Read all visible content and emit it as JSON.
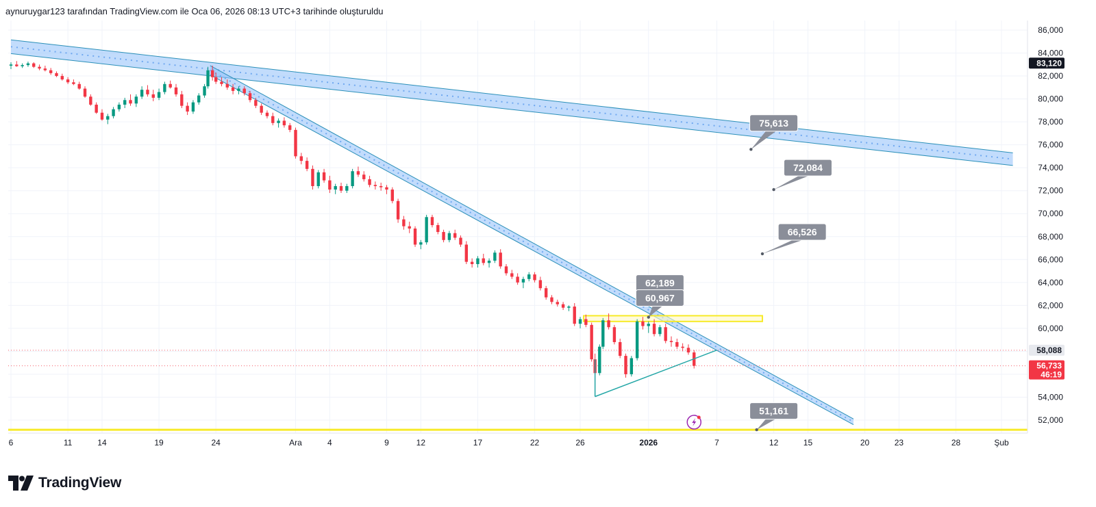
{
  "header": {
    "attribution": "aynuruygar123 tarafından TradingView.com ile Oca 06, 2026 08:13 UTC+3 tarihinde oluşturuldu"
  },
  "brand": {
    "name": "TradingView"
  },
  "colors": {
    "up": "#089981",
    "down": "#f23645",
    "trend_band": "#90bff9",
    "trend_edge": "#2a8fb8",
    "zone_yellow": "#f7ea28",
    "callout": "#8a8e99",
    "triangle": "#22a6a6"
  },
  "chart_data": {
    "type": "candlestick",
    "y_axis": {
      "min": 50600,
      "max": 87000,
      "position": "right",
      "ticks": [
        "86,000",
        "84,000",
        "82,000",
        "80,000",
        "78,000",
        "76,000",
        "74,000",
        "72,000",
        "70,000",
        "68,000",
        "66,000",
        "64,000",
        "62,000",
        "60,000",
        "58,000",
        "56,000",
        "54,000",
        "52,000"
      ],
      "tick_values": [
        86000,
        84000,
        82000,
        80000,
        78000,
        76000,
        74000,
        72000,
        70000,
        68000,
        66000,
        64000,
        62000,
        60000,
        58000,
        56000,
        54000,
        52000
      ]
    },
    "x_axis": {
      "date_start": "2025-11-06",
      "date_end": "2026-02-02",
      "ticks": [
        {
          "label": "6",
          "date": "2025-11-06"
        },
        {
          "label": "11",
          "date": "2025-11-11"
        },
        {
          "label": "14",
          "date": "2025-11-14"
        },
        {
          "label": "19",
          "date": "2025-11-19"
        },
        {
          "label": "24",
          "date": "2025-11-24"
        },
        {
          "label": "Ara",
          "date": "2025-12-01",
          "bold": false
        },
        {
          "label": "4",
          "date": "2025-12-04"
        },
        {
          "label": "9",
          "date": "2025-12-09"
        },
        {
          "label": "12",
          "date": "2025-12-12"
        },
        {
          "label": "17",
          "date": "2025-12-17"
        },
        {
          "label": "22",
          "date": "2025-12-22"
        },
        {
          "label": "26",
          "date": "2025-12-26"
        },
        {
          "label": "2026",
          "date": "2026-01-01",
          "bold": true
        },
        {
          "label": "7",
          "date": "2026-01-07"
        },
        {
          "label": "12",
          "date": "2026-01-12"
        },
        {
          "label": "15",
          "date": "2026-01-15"
        },
        {
          "label": "20",
          "date": "2026-01-20"
        },
        {
          "label": "23",
          "date": "2026-01-23"
        },
        {
          "label": "28",
          "date": "2026-01-28"
        },
        {
          "label": "Şub",
          "date": "2026-02-01"
        }
      ]
    },
    "price_tags": [
      {
        "label": "83,120",
        "value": 83120,
        "bg": "#131722"
      },
      {
        "label": "58,088",
        "value": 58088,
        "bg": "#e7e9ee",
        "fg": "#131722"
      },
      {
        "label": "56,733",
        "value": 56733,
        "bg": "#f23645",
        "sub": "46:19"
      }
    ],
    "ref_lines": [
      {
        "value": 58088,
        "color": "#f23645"
      },
      {
        "value": 56733,
        "color": "#f23645"
      }
    ],
    "callouts": [
      {
        "label": "75,613",
        "date": "2026-01-12",
        "value": 77900,
        "anchor_date": "2026-01-10",
        "anchor_value": 75600
      },
      {
        "label": "72,084",
        "date": "2026-01-15",
        "value": 74000,
        "anchor_date": "2026-01-12",
        "anchor_value": 72100
      },
      {
        "label": "66,526",
        "date": "2026-01-14.5",
        "value": 68400,
        "anchor_date": "2026-01-11",
        "anchor_value": 66500
      },
      {
        "label": "62,189",
        "date": "2026-01-02",
        "value": 63950,
        "anchor_date": "2025-12-31",
        "anchor_value": 62200
      },
      {
        "label": "60,967",
        "date": "2026-01-02",
        "value": 62650,
        "anchor_date": "2026-01-01",
        "anchor_value": 60970
      },
      {
        "label": "51,161",
        "date": "2026-01-12",
        "value": 52800,
        "anchor_date": "2026-01-10.5",
        "anchor_value": 51161
      }
    ],
    "trend_bands": [
      {
        "name": "long-band",
        "from_date": "2025-11-06",
        "from_top": 85150,
        "from_bot": 83950,
        "to_date": "2026-02-02",
        "to_top": 75300,
        "to_bot": 74200
      },
      {
        "name": "steep-band",
        "from_date": "2025-11-23.5",
        "from_top": 82900,
        "from_bot": 82100,
        "to_date": "2026-01-19",
        "to_top": 52100,
        "to_bot": 51600
      }
    ],
    "yellow_zone": {
      "from_date": "2025-12-26.3",
      "to_date": "2026-01-11",
      "top": 61100,
      "bot": 60600
    },
    "yellow_line": {
      "value": 51161
    },
    "triangle": {
      "points": [
        [
          "2025-12-27.3",
          54050
        ],
        [
          "2026-01-07",
          58100
        ]
      ]
    },
    "candles": [
      [
        "2025-11-06",
        82900,
        83200,
        82600,
        83000
      ],
      [
        "2025-11-06.5",
        83000,
        83300,
        82800,
        82850
      ],
      [
        "2025-11-07",
        82850,
        83100,
        82700,
        82950
      ],
      [
        "2025-11-07.5",
        82950,
        83250,
        82800,
        83100
      ],
      [
        "2025-11-08",
        83100,
        83200,
        82700,
        82800
      ],
      [
        "2025-11-08.5",
        82800,
        83000,
        82500,
        82650
      ],
      [
        "2025-11-09",
        82650,
        82900,
        82400,
        82500
      ],
      [
        "2025-11-09.5",
        82500,
        82700,
        82100,
        82250
      ],
      [
        "2025-11-10",
        82250,
        82400,
        81900,
        82000
      ],
      [
        "2025-11-10.5",
        82000,
        82200,
        81600,
        81700
      ],
      [
        "2025-11-11",
        81700,
        81900,
        81300,
        81450
      ],
      [
        "2025-11-11.5",
        81450,
        81700,
        81200,
        81300
      ],
      [
        "2025-11-12",
        81300,
        81500,
        80800,
        80900
      ],
      [
        "2025-11-12.5",
        80900,
        81100,
        80100,
        80200
      ],
      [
        "2025-11-13",
        80200,
        80400,
        79400,
        79500
      ],
      [
        "2025-11-13.5",
        79500,
        79700,
        78700,
        78800
      ],
      [
        "2025-11-14",
        78800,
        79100,
        78100,
        78200
      ],
      [
        "2025-11-14.5",
        78200,
        78700,
        77800,
        78500
      ],
      [
        "2025-11-15",
        78500,
        79300,
        78300,
        79100
      ],
      [
        "2025-11-15.5",
        79100,
        79700,
        78900,
        79500
      ],
      [
        "2025-11-16",
        79500,
        80100,
        79200,
        79900
      ],
      [
        "2025-11-16.5",
        79900,
        80400,
        79400,
        79600
      ],
      [
        "2025-11-17",
        79600,
        80400,
        79300,
        80200
      ],
      [
        "2025-11-17.5",
        80200,
        81100,
        80000,
        80800
      ],
      [
        "2025-11-18",
        80800,
        81200,
        80200,
        80400
      ],
      [
        "2025-11-18.5",
        80400,
        80800,
        79800,
        80100
      ],
      [
        "2025-11-19",
        80100,
        80900,
        79900,
        80600
      ],
      [
        "2025-11-19.5",
        80600,
        81500,
        80400,
        81300
      ],
      [
        "2025-11-20",
        81300,
        81600,
        80900,
        81000
      ],
      [
        "2025-11-20.5",
        81000,
        81300,
        80200,
        80400
      ],
      [
        "2025-11-21",
        80400,
        80700,
        79200,
        79400
      ],
      [
        "2025-11-21.5",
        79400,
        79700,
        78600,
        78900
      ],
      [
        "2025-11-22",
        78900,
        79900,
        78700,
        79700
      ],
      [
        "2025-11-22.5",
        79700,
        80500,
        79500,
        80300
      ],
      [
        "2025-11-23",
        80300,
        81300,
        80100,
        81100
      ],
      [
        "2025-11-23.3",
        81100,
        82800,
        80900,
        82500
      ],
      [
        "2025-11-23.7",
        82500,
        82900,
        81600,
        81900
      ],
      [
        "2025-11-24",
        81900,
        82300,
        81300,
        81500
      ],
      [
        "2025-11-24.5",
        81500,
        81900,
        81100,
        81300
      ],
      [
        "2025-11-25",
        81300,
        81700,
        80800,
        81000
      ],
      [
        "2025-11-25.5",
        81000,
        81300,
        80400,
        80700
      ],
      [
        "2025-11-26",
        80700,
        81100,
        80400,
        80900
      ],
      [
        "2025-11-26.5",
        80900,
        81100,
        80300,
        80500
      ],
      [
        "2025-11-27",
        80500,
        80700,
        79700,
        79900
      ],
      [
        "2025-11-27.5",
        79900,
        80100,
        79200,
        79400
      ],
      [
        "2025-11-28",
        79400,
        79600,
        78600,
        78800
      ],
      [
        "2025-11-28.5",
        78800,
        79000,
        78300,
        78500
      ],
      [
        "2025-11-29",
        78500,
        78800,
        77700,
        77900
      ],
      [
        "2025-11-29.5",
        77900,
        78300,
        77500,
        78100
      ],
      [
        "2025-11-30",
        78100,
        78400,
        77500,
        77700
      ],
      [
        "2025-11-30.5",
        77700,
        77900,
        77100,
        77300
      ],
      [
        "2025-12-01",
        77300,
        77500,
        74800,
        75000
      ],
      [
        "2025-12-01.5",
        75000,
        75300,
        74300,
        74600
      ],
      [
        "2025-12-02",
        74600,
        74900,
        73700,
        73900
      ],
      [
        "2025-12-02.5",
        73900,
        74200,
        72100,
        72400
      ],
      [
        "2025-12-03",
        72400,
        73800,
        72200,
        73600
      ],
      [
        "2025-12-03.5",
        73600,
        73900,
        72700,
        72900
      ],
      [
        "2025-12-04",
        72900,
        73300,
        71800,
        72100
      ],
      [
        "2025-12-04.5",
        72100,
        72600,
        71700,
        72400
      ],
      [
        "2025-12-05",
        72400,
        72700,
        71800,
        72000
      ],
      [
        "2025-12-05.5",
        72000,
        72600,
        71800,
        72400
      ],
      [
        "2025-12-06",
        72400,
        73900,
        72200,
        73700
      ],
      [
        "2025-12-06.5",
        73700,
        74100,
        73200,
        73400
      ],
      [
        "2025-12-07",
        73400,
        73700,
        72800,
        73000
      ],
      [
        "2025-12-07.5",
        73000,
        73300,
        72300,
        72500
      ],
      [
        "2025-12-08",
        72500,
        72800,
        72100,
        72400
      ],
      [
        "2025-12-08.5",
        72400,
        72700,
        72000,
        72300
      ],
      [
        "2025-12-09",
        72300,
        72500,
        71700,
        72100
      ],
      [
        "2025-12-09.5",
        72100,
        72300,
        70900,
        71100
      ],
      [
        "2025-12-10",
        71100,
        71300,
        69200,
        69500
      ],
      [
        "2025-12-10.5",
        69500,
        69800,
        68600,
        68900
      ],
      [
        "2025-12-11",
        68900,
        69300,
        68300,
        68700
      ],
      [
        "2025-12-11.5",
        68700,
        68900,
        67100,
        67300
      ],
      [
        "2025-12-12",
        67300,
        67700,
        66900,
        67500
      ],
      [
        "2025-12-12.5",
        67500,
        69900,
        67300,
        69700
      ],
      [
        "2025-12-13",
        69700,
        69900,
        68800,
        69000
      ],
      [
        "2025-12-13.5",
        69000,
        69200,
        68200,
        68400
      ],
      [
        "2025-12-14",
        68400,
        68600,
        67500,
        67700
      ],
      [
        "2025-12-14.5",
        67700,
        68500,
        67500,
        68300
      ],
      [
        "2025-12-15",
        68300,
        68600,
        67700,
        67900
      ],
      [
        "2025-12-15.5",
        67900,
        68100,
        67100,
        67300
      ],
      [
        "2025-12-16",
        67300,
        67600,
        65600,
        65800
      ],
      [
        "2025-12-16.5",
        65800,
        66100,
        65300,
        65600
      ],
      [
        "2025-12-17",
        65600,
        66300,
        65300,
        66100
      ],
      [
        "2025-12-17.5",
        66100,
        66500,
        65500,
        65700
      ],
      [
        "2025-12-18",
        65700,
        66100,
        65300,
        65900
      ],
      [
        "2025-12-18.5",
        65900,
        66800,
        65700,
        66600
      ],
      [
        "2025-12-19",
        66600,
        66900,
        65200,
        65400
      ],
      [
        "2025-12-19.5",
        65400,
        65600,
        64600,
        64800
      ],
      [
        "2025-12-20",
        64800,
        65100,
        64300,
        64500
      ],
      [
        "2025-12-20.5",
        64500,
        64800,
        63800,
        64000
      ],
      [
        "2025-12-21",
        64000,
        64500,
        63500,
        64300
      ],
      [
        "2025-12-21.5",
        64300,
        64900,
        64100,
        64700
      ],
      [
        "2025-12-22",
        64700,
        64900,
        64000,
        64200
      ],
      [
        "2025-12-22.5",
        64200,
        64500,
        63300,
        63500
      ],
      [
        "2025-12-23",
        63500,
        63700,
        62500,
        62700
      ],
      [
        "2025-12-23.5",
        62700,
        62900,
        62100,
        62300
      ],
      [
        "2025-12-24",
        62300,
        62500,
        61900,
        62100
      ],
      [
        "2025-12-24.5",
        62100,
        62300,
        61600,
        61800
      ],
      [
        "2025-12-25",
        61800,
        62000,
        61500,
        61900
      ],
      [
        "2025-12-25.5",
        61900,
        62200,
        60200,
        60400
      ],
      [
        "2025-12-26",
        60400,
        61000,
        60000,
        60800
      ],
      [
        "2025-12-26.5",
        60800,
        61200,
        60100,
        60300
      ],
      [
        "2025-12-27",
        60300,
        60500,
        57100,
        57300
      ],
      [
        "2025-12-27.3",
        57300,
        57800,
        54100,
        56100
      ],
      [
        "2025-12-27.7",
        56100,
        58600,
        55900,
        58400
      ],
      [
        "2025-12-28",
        58400,
        60900,
        58200,
        60700
      ],
      [
        "2025-12-28.5",
        60700,
        61300,
        59900,
        60100
      ],
      [
        "2025-12-29",
        60100,
        60300,
        58600,
        58800
      ],
      [
        "2025-12-29.5",
        58800,
        59100,
        57400,
        57600
      ],
      [
        "2025-12-30",
        57600,
        57800,
        55700,
        56000
      ],
      [
        "2025-12-30.5",
        56000,
        57600,
        55800,
        57400
      ],
      [
        "2025-12-31",
        57400,
        60800,
        57200,
        60600
      ],
      [
        "2025-12-31.5",
        60600,
        61000,
        59900,
        60200
      ],
      [
        "2026-01-01",
        60200,
        60600,
        59600,
        60400
      ],
      [
        "2026-01-01.5",
        60400,
        60800,
        59300,
        59500
      ],
      [
        "2026-01-02",
        59500,
        60300,
        59300,
        60100
      ],
      [
        "2026-01-02.5",
        60100,
        60400,
        58700,
        58900
      ],
      [
        "2026-01-03",
        58900,
        59300,
        58400,
        58800
      ],
      [
        "2026-01-03.5",
        58800,
        59100,
        58200,
        58400
      ],
      [
        "2026-01-04",
        58400,
        58700,
        58000,
        58300
      ],
      [
        "2026-01-04.5",
        58300,
        58600,
        57700,
        57900
      ],
      [
        "2026-01-05",
        57900,
        58100,
        56500,
        56733
      ]
    ]
  }
}
